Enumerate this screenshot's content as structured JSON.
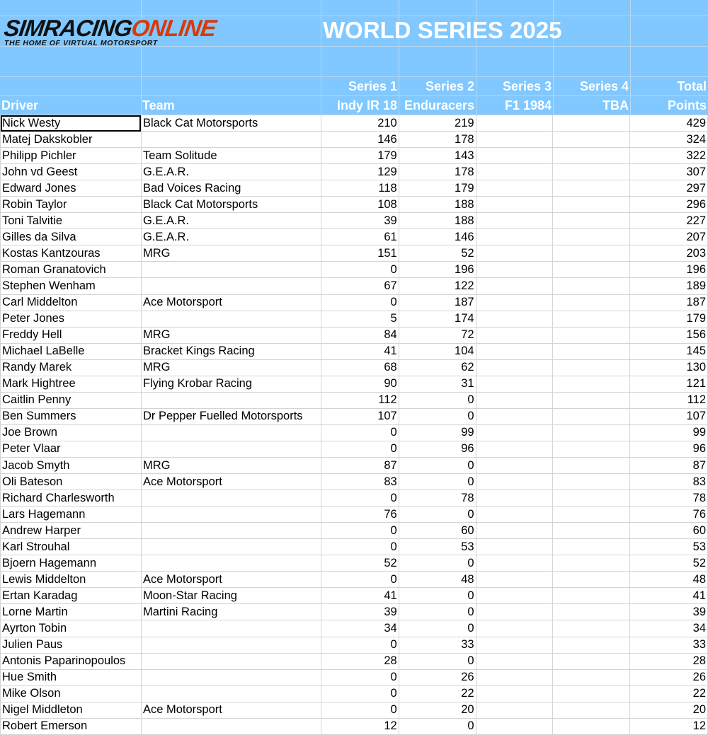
{
  "logo": {
    "part1": "SIMRACING",
    "part2": "ONLINE",
    "tagline": "THE HOME OF VIRTUAL MOTORSPORT"
  },
  "title": "WORLD SERIES 2025",
  "colors": {
    "header_bg": "#80c8ff",
    "logo_accent": "#d83a0a"
  },
  "columns": [
    {
      "line1": "",
      "line2": "Driver"
    },
    {
      "line1": "",
      "line2": "Team"
    },
    {
      "line1": "Series 1",
      "line2": "Indy IR 18"
    },
    {
      "line1": "Series 2",
      "line2": "Enduracers"
    },
    {
      "line1": "Series 3",
      "line2": "F1 1984"
    },
    {
      "line1": "Series 4",
      "line2": "TBA"
    },
    {
      "line1": "Total",
      "line2": "Points"
    }
  ],
  "rows": [
    [
      "Nick Westy",
      "Black Cat Motorsports",
      "210",
      "219",
      "",
      "",
      "429"
    ],
    [
      "Matej Dakskobler",
      "",
      "146",
      "178",
      "",
      "",
      "324"
    ],
    [
      "Philipp Pichler",
      "Team Solitude",
      "179",
      "143",
      "",
      "",
      "322"
    ],
    [
      "John vd Geest",
      "G.E.A.R.",
      "129",
      "178",
      "",
      "",
      "307"
    ],
    [
      "Edward Jones",
      "Bad Voices Racing",
      "118",
      "179",
      "",
      "",
      "297"
    ],
    [
      "Robin Taylor",
      "Black Cat Motorsports",
      "108",
      "188",
      "",
      "",
      "296"
    ],
    [
      "Toni Talvitie",
      "G.E.A.R.",
      "39",
      "188",
      "",
      "",
      "227"
    ],
    [
      "Gilles da Silva",
      "G.E.A.R.",
      "61",
      "146",
      "",
      "",
      "207"
    ],
    [
      "Kostas Kantzouras",
      "MRG",
      "151",
      "52",
      "",
      "",
      "203"
    ],
    [
      "Roman Granatovich",
      "",
      "0",
      "196",
      "",
      "",
      "196"
    ],
    [
      "Stephen Wenham",
      "",
      "67",
      "122",
      "",
      "",
      "189"
    ],
    [
      "Carl Middelton",
      "Ace Motorsport",
      "0",
      "187",
      "",
      "",
      "187"
    ],
    [
      "Peter Jones",
      "",
      "5",
      "174",
      "",
      "",
      "179"
    ],
    [
      "Freddy Hell",
      "MRG",
      "84",
      "72",
      "",
      "",
      "156"
    ],
    [
      "Michael LaBelle",
      "Bracket Kings Racing",
      "41",
      "104",
      "",
      "",
      "145"
    ],
    [
      "Randy Marek",
      "MRG",
      "68",
      "62",
      "",
      "",
      "130"
    ],
    [
      "Mark Hightree",
      "Flying Krobar Racing",
      "90",
      "31",
      "",
      "",
      "121"
    ],
    [
      "Caitlin Penny",
      "",
      "112",
      "0",
      "",
      "",
      "112"
    ],
    [
      "Ben Summers",
      "Dr Pepper Fuelled Motorsports",
      "107",
      "0",
      "",
      "",
      "107"
    ],
    [
      "Joe Brown",
      "",
      "0",
      "99",
      "",
      "",
      "99"
    ],
    [
      "Peter Vlaar",
      "",
      "0",
      "96",
      "",
      "",
      "96"
    ],
    [
      "Jacob Smyth",
      "MRG",
      "87",
      "0",
      "",
      "",
      "87"
    ],
    [
      "Oli Bateson",
      "Ace Motorsport",
      "83",
      "0",
      "",
      "",
      "83"
    ],
    [
      "Richard Charlesworth",
      "",
      "0",
      "78",
      "",
      "",
      "78"
    ],
    [
      "Lars Hagemann",
      "",
      "76",
      "0",
      "",
      "",
      "76"
    ],
    [
      "Andrew Harper",
      "",
      "0",
      "60",
      "",
      "",
      "60"
    ],
    [
      "Karl Strouhal",
      "",
      "0",
      "53",
      "",
      "",
      "53"
    ],
    [
      "Bjoern Hagemann",
      "",
      "52",
      "0",
      "",
      "",
      "52"
    ],
    [
      "Lewis Middelton",
      "Ace Motorsport",
      "0",
      "48",
      "",
      "",
      "48"
    ],
    [
      "Ertan Karadag",
      "Moon-Star Racing",
      "41",
      "0",
      "",
      "",
      "41"
    ],
    [
      "Lorne Martin",
      "Martini Racing",
      "39",
      "0",
      "",
      "",
      "39"
    ],
    [
      "Ayrton Tobin",
      "",
      "34",
      "0",
      "",
      "",
      "34"
    ],
    [
      "Julien Paus",
      "",
      "0",
      "33",
      "",
      "",
      "33"
    ],
    [
      "Antonis Paparinopoulos",
      "",
      "28",
      "0",
      "",
      "",
      "28"
    ],
    [
      "Hue Smith",
      "",
      "0",
      "26",
      "",
      "",
      "26"
    ],
    [
      "Mike Olson",
      "",
      "0",
      "22",
      "",
      "",
      "22"
    ],
    [
      "Nigel Middleton",
      "Ace Motorsport",
      "0",
      "20",
      "",
      "",
      "20"
    ],
    [
      "Robert Emerson",
      "",
      "12",
      "0",
      "",
      "",
      "12"
    ]
  ]
}
